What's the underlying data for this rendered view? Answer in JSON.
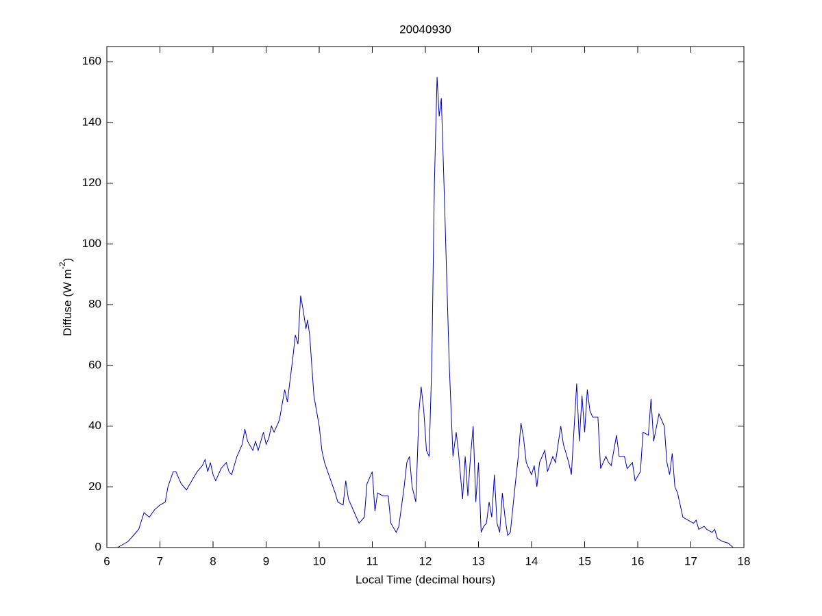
{
  "chart_data": {
    "type": "line",
    "title": "20040930",
    "xlabel": "Local Time (decimal hours)",
    "ylabel_parts": [
      "Diffuse (W m",
      "-2",
      ")"
    ],
    "xlim": [
      6,
      18
    ],
    "ylim": [
      0,
      165
    ],
    "xticks": [
      6,
      7,
      8,
      9,
      10,
      11,
      12,
      13,
      14,
      15,
      16,
      17,
      18
    ],
    "yticks": [
      0,
      20,
      40,
      60,
      80,
      100,
      120,
      140,
      160
    ],
    "grid": false,
    "series": [
      {
        "color": "#0000aa",
        "x": [
          6.2,
          6.4,
          6.5,
          6.6,
          6.7,
          6.8,
          6.9,
          7.0,
          7.1,
          7.15,
          7.25,
          7.3,
          7.4,
          7.5,
          7.6,
          7.7,
          7.8,
          7.85,
          7.9,
          7.95,
          8.0,
          8.05,
          8.15,
          8.25,
          8.3,
          8.35,
          8.45,
          8.55,
          8.6,
          8.65,
          8.75,
          8.8,
          8.85,
          8.95,
          9.0,
          9.05,
          9.1,
          9.15,
          9.25,
          9.35,
          9.4,
          9.5,
          9.55,
          9.6,
          9.65,
          9.7,
          9.75,
          9.78,
          9.82,
          9.9,
          10.0,
          10.05,
          10.1,
          10.2,
          10.3,
          10.35,
          10.45,
          10.5,
          10.55,
          10.65,
          10.75,
          10.85,
          10.9,
          11.0,
          11.05,
          11.1,
          11.2,
          11.3,
          11.35,
          11.45,
          11.5,
          11.6,
          11.65,
          11.7,
          11.75,
          11.82,
          11.88,
          11.92,
          11.97,
          12.02,
          12.07,
          12.12,
          12.17,
          12.22,
          12.26,
          12.3,
          12.35,
          12.45,
          12.52,
          12.58,
          12.62,
          12.7,
          12.75,
          12.8,
          12.85,
          12.9,
          12.95,
          13.0,
          13.05,
          13.1,
          13.15,
          13.2,
          13.25,
          13.3,
          13.35,
          13.4,
          13.45,
          13.5,
          13.55,
          13.6,
          13.7,
          13.75,
          13.8,
          13.85,
          13.9,
          14.0,
          14.05,
          14.1,
          14.15,
          14.25,
          14.3,
          14.4,
          14.45,
          14.55,
          14.6,
          14.7,
          14.75,
          14.85,
          14.9,
          14.95,
          15.0,
          15.05,
          15.1,
          15.15,
          15.25,
          15.3,
          15.4,
          15.45,
          15.5,
          15.6,
          15.65,
          15.75,
          15.8,
          15.9,
          15.95,
          16.05,
          16.1,
          16.2,
          16.25,
          16.3,
          16.4,
          16.5,
          16.55,
          16.6,
          16.65,
          16.7,
          16.75,
          16.85,
          16.95,
          17.05,
          17.1,
          17.15,
          17.25,
          17.3,
          17.4,
          17.45,
          17.5,
          17.6,
          17.7,
          17.8
        ],
        "values": [
          0,
          2,
          4,
          6,
          11.5,
          10,
          12.5,
          14,
          15,
          20,
          25,
          25,
          21,
          19,
          22,
          25,
          27,
          29,
          25,
          28,
          24,
          22,
          26,
          28,
          25,
          24,
          30,
          34,
          39,
          35,
          32,
          35,
          32,
          38,
          34,
          36,
          40,
          38,
          42,
          52,
          48,
          62,
          70,
          67,
          83,
          78,
          72,
          75,
          70,
          50,
          40,
          32,
          28,
          23,
          18,
          15,
          14,
          22,
          16,
          12,
          8,
          10,
          21,
          25,
          12,
          18,
          17,
          17,
          8,
          5,
          7,
          20,
          28,
          30,
          20,
          15,
          45,
          53,
          45,
          32,
          30,
          60,
          120,
          155,
          142,
          148,
          120,
          60,
          30,
          38,
          32,
          16,
          30,
          17,
          30,
          40,
          15,
          28,
          5,
          7,
          8,
          15,
          10,
          24,
          8,
          5,
          18,
          10,
          4,
          5,
          22,
          30,
          41,
          36,
          28,
          24,
          27,
          20,
          28,
          32,
          25,
          30,
          28,
          40,
          34,
          28,
          24,
          54,
          35,
          50,
          38,
          52,
          45,
          43,
          43,
          26,
          30,
          28,
          27,
          37,
          30,
          30,
          26,
          28,
          22,
          25,
          38,
          37,
          49,
          35,
          44,
          40,
          28,
          24,
          31,
          20,
          18,
          10,
          9,
          8,
          9,
          6,
          7,
          6,
          5,
          6,
          3,
          2,
          1.5,
          0
        ]
      }
    ]
  }
}
